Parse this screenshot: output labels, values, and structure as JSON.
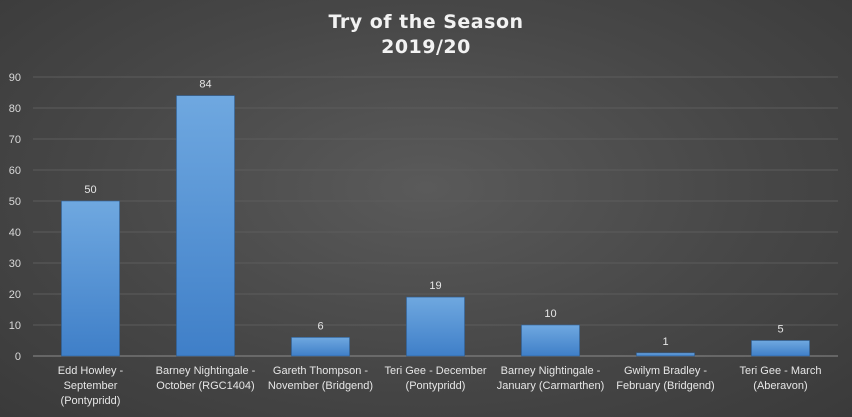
{
  "chart_data": {
    "type": "bar",
    "title": "Try of the Season",
    "subtitle": "2019/20",
    "categories": [
      [
        "Edd Howley -",
        "September",
        "(Pontypridd)"
      ],
      [
        "Barney Nightingale -",
        "October (RGC1404)"
      ],
      [
        "Gareth Thompson -",
        "November (Bridgend)"
      ],
      [
        "Teri Gee - December",
        "(Pontypridd)"
      ],
      [
        "Barney Nightingale -",
        "January (Carmarthen)"
      ],
      [
        "Gwilym Bradley -",
        "February (Bridgend)"
      ],
      [
        "Teri Gee - March",
        "(Aberavon)"
      ]
    ],
    "values": [
      50,
      84,
      6,
      19,
      10,
      1,
      5
    ],
    "ylim": [
      0,
      90
    ],
    "yticks": [
      0,
      10,
      20,
      30,
      40,
      50,
      60,
      70,
      80,
      90
    ],
    "grid": true,
    "legend": "none",
    "colors": {
      "bar_top": "#6fa8e0",
      "bar_bottom": "#3f7fc8",
      "grid": "#5c5c5c",
      "axis": "#8c8c8c"
    }
  }
}
